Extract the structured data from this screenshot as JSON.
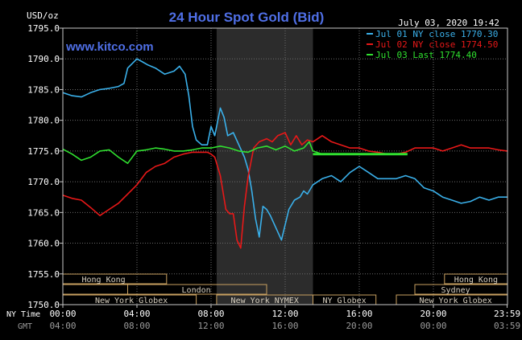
{
  "chart_data": {
    "type": "line",
    "title": "24 Hour Spot Gold (Bid)",
    "brand": "www.kitco.com",
    "timestamp": "July 03, 2020 19:42",
    "ylabel": "USD/oz",
    "ylim": [
      1750.0,
      1795.0
    ],
    "y_ticks": [
      "1795.0",
      "1790.0",
      "1785.0",
      "1780.0",
      "1775.0",
      "1770.0",
      "1765.0",
      "1760.0",
      "1755.0",
      "1750.0"
    ],
    "x_ticks": [
      {
        "ny": "00:00",
        "gmt": "04:00"
      },
      {
        "ny": "04:00",
        "gmt": "08:00"
      },
      {
        "ny": "08:00",
        "gmt": "12:00"
      },
      {
        "ny": "12:00",
        "gmt": "16:00"
      },
      {
        "ny": "16:00",
        "gmt": "20:00"
      },
      {
        "ny": "20:00",
        "gmt": "00:00"
      },
      {
        "ny": "23:59",
        "gmt": "03:59"
      }
    ],
    "x_row_labels": {
      "ny": "NY Time",
      "gmt": "GMT"
    },
    "x_hours": [
      0,
      4,
      8,
      12,
      16,
      20,
      23.98
    ],
    "shaded_hours": [
      8.3,
      13.5
    ],
    "sessions": [
      {
        "name": "Hong Kong",
        "row": 0,
        "segments": [
          [
            0,
            5.6
          ],
          [
            20.6,
            24
          ]
        ],
        "label_at": [
          2.2,
          22.3
        ]
      },
      {
        "name": "London",
        "row": 1,
        "segments": [
          [
            3.5,
            11.0
          ]
        ],
        "label_at": [
          7.2
        ]
      },
      {
        "name": "Sydney",
        "row": 1,
        "segments": [
          [
            19.0,
            24
          ]
        ],
        "label_at": [
          21.2
        ]
      },
      {
        "name": "New York Globex",
        "row": 2,
        "segments": [
          [
            0,
            7.2
          ],
          [
            18.0,
            24
          ]
        ],
        "label_at": [
          3.7,
          21.2
        ]
      },
      {
        "name": "New York NYMEX",
        "row": 2,
        "segments": [
          [
            8.3,
            13.5
          ]
        ],
        "label_at": [
          10.9
        ]
      },
      {
        "name": "NY Globex",
        "row": 2,
        "segments": [
          [
            13.5,
            16.9
          ]
        ],
        "label_at": [
          15.2
        ]
      }
    ],
    "series": [
      {
        "name": "Jul 01 NY close 1770.30",
        "color": "#3ab0ea",
        "x": [
          0,
          0.5,
          1.0,
          1.5,
          2.0,
          2.5,
          3.0,
          3.3,
          3.5,
          4.0,
          4.3,
          4.6,
          5.0,
          5.5,
          6.0,
          6.3,
          6.6,
          6.8,
          7.0,
          7.2,
          7.5,
          7.8,
          8.0,
          8.2,
          8.5,
          8.7,
          8.9,
          9.2,
          9.5,
          9.8,
          10.0,
          10.2,
          10.4,
          10.6,
          10.8,
          11.0,
          11.2,
          11.5,
          11.8,
          12.0,
          12.2,
          12.5,
          12.8,
          13.0,
          13.2,
          13.5,
          14.0,
          14.5,
          15.0,
          15.5,
          16.0,
          16.5,
          17.0,
          17.5,
          18.0,
          18.5,
          19.0,
          19.5,
          20.0,
          20.5,
          21.0,
          21.5,
          22.0,
          22.5,
          23.0,
          23.5,
          24.0
        ],
        "values": [
          1784.5,
          1784.0,
          1783.8,
          1784.5,
          1785.0,
          1785.2,
          1785.5,
          1786.0,
          1788.5,
          1790.0,
          1789.5,
          1789.0,
          1788.5,
          1787.5,
          1788.0,
          1788.8,
          1787.5,
          1784.0,
          1779.0,
          1776.8,
          1776.0,
          1776.0,
          1779.0,
          1777.5,
          1782.0,
          1780.5,
          1777.5,
          1778.0,
          1776.0,
          1774.0,
          1772.0,
          1768.5,
          1764.0,
          1761.0,
          1766.0,
          1765.5,
          1764.5,
          1762.5,
          1760.5,
          1763.0,
          1765.5,
          1767.0,
          1767.5,
          1768.5,
          1768.0,
          1769.5,
          1770.5,
          1771.0,
          1770.0,
          1771.5,
          1772.5,
          1771.5,
          1770.5,
          1770.5,
          1770.5,
          1771.0,
          1770.5,
          1769.0,
          1768.5,
          1767.5,
          1767.0,
          1766.5,
          1766.8,
          1767.5,
          1767.0,
          1767.5,
          1767.5
        ]
      },
      {
        "name": "Jul 02 NY close 1774.50",
        "color": "#e81818",
        "x": [
          0,
          0.5,
          1.0,
          1.5,
          2.0,
          2.5,
          3.0,
          3.5,
          4.0,
          4.5,
          5.0,
          5.5,
          6.0,
          6.5,
          7.0,
          7.5,
          7.8,
          8.0,
          8.2,
          8.5,
          8.8,
          9.0,
          9.2,
          9.4,
          9.6,
          9.8,
          10.0,
          10.3,
          10.6,
          11.0,
          11.3,
          11.6,
          12.0,
          12.3,
          12.6,
          12.9,
          13.2,
          13.5,
          14.0,
          14.5,
          15.0,
          15.5,
          16.0,
          16.5,
          17.0,
          17.5,
          18.0,
          18.5,
          19.0,
          19.5,
          20.0,
          20.5,
          21.0,
          21.5,
          22.0,
          22.5,
          23.0,
          23.5,
          24.0
        ],
        "values": [
          1767.8,
          1767.3,
          1767.0,
          1765.8,
          1764.5,
          1765.5,
          1766.5,
          1768.0,
          1769.5,
          1771.5,
          1772.5,
          1773.0,
          1774.0,
          1774.5,
          1774.8,
          1774.8,
          1774.8,
          1774.5,
          1774.0,
          1771.0,
          1765.5,
          1764.8,
          1764.8,
          1760.5,
          1759.2,
          1766.0,
          1770.8,
          1775.5,
          1776.5,
          1777.0,
          1776.5,
          1777.5,
          1778.0,
          1776.0,
          1777.5,
          1776.0,
          1776.8,
          1776.5,
          1777.5,
          1776.5,
          1776.0,
          1775.5,
          1775.5,
          1775.0,
          1774.8,
          1774.5,
          1774.5,
          1774.8,
          1775.5,
          1775.5,
          1775.5,
          1775.0,
          1775.5,
          1776.0,
          1775.5,
          1775.5,
          1775.5,
          1775.2,
          1775.0
        ]
      },
      {
        "name": "Jul 03 Last 1774.40",
        "color": "#30e030",
        "x": [
          0,
          0.5,
          1.0,
          1.5,
          2.0,
          2.5,
          3.0,
          3.5,
          4.0,
          4.5,
          5.0,
          5.5,
          6.0,
          6.5,
          7.0,
          7.5,
          8.0,
          8.5,
          9.0,
          9.5,
          10.0,
          10.5,
          11.0,
          11.5,
          12.0,
          12.5,
          13.0,
          13.3,
          13.5,
          14.0,
          15.0,
          16.0,
          17.0,
          18.0,
          18.6
        ],
        "values": [
          1775.3,
          1774.5,
          1773.5,
          1774.0,
          1775.0,
          1775.2,
          1774.0,
          1773.0,
          1775.0,
          1775.2,
          1775.5,
          1775.3,
          1775.0,
          1775.0,
          1775.2,
          1775.5,
          1775.5,
          1775.8,
          1775.5,
          1775.0,
          1774.8,
          1775.5,
          1775.8,
          1775.2,
          1775.8,
          1775.0,
          1775.5,
          1776.5,
          1775.0,
          1774.5,
          1774.5,
          1774.5,
          1774.5,
          1774.5,
          1774.5
        ]
      }
    ]
  }
}
